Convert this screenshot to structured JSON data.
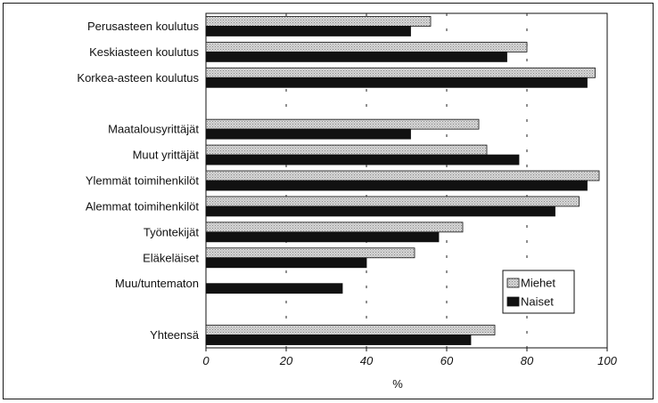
{
  "chart_data": {
    "type": "bar",
    "orientation": "horizontal",
    "categories": [
      "Perusasteen koulutus",
      "Keskiasteen koulutus",
      "Korkea-asteen koulutus",
      "",
      "Maatalousyrittäjät",
      "Muut yrittäjät",
      "Ylemmät toimihenkilöt",
      "Alemmat toimihenkilöt",
      "Työntekijät",
      "Eläkeläiset",
      "Muu/tuntematon",
      "",
      "Yhteensä"
    ],
    "series": [
      {
        "name": "Miehet",
        "color": "#c8c8c8",
        "pattern": "dotted",
        "values": [
          56,
          80,
          97,
          null,
          68,
          70,
          98,
          93,
          64,
          52,
          null,
          null,
          72
        ]
      },
      {
        "name": "Naiset",
        "color": "#111111",
        "pattern": "solid",
        "values": [
          51,
          75,
          95,
          null,
          51,
          78,
          95,
          87,
          58,
          40,
          34,
          null,
          66
        ]
      }
    ],
    "xlim": [
      0,
      100
    ],
    "xticks": [
      0,
      20,
      40,
      60,
      80,
      100
    ],
    "xlabel": "%",
    "ylabel": "",
    "title": "",
    "grid": "vertical dashed",
    "legend_position": "bottom-right"
  }
}
